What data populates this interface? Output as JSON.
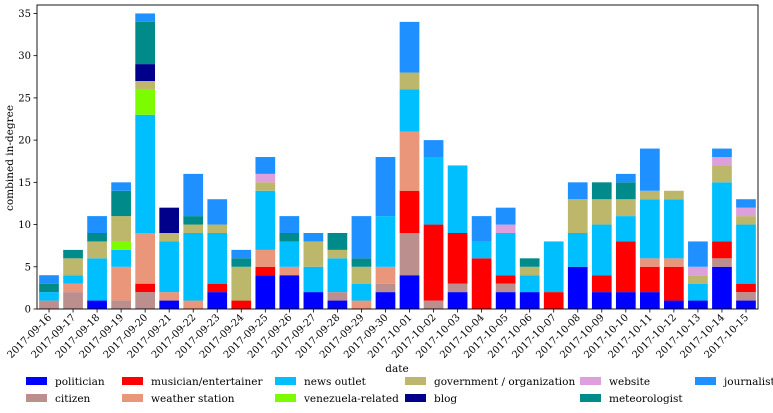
{
  "chart_data": {
    "type": "bar",
    "stacked": true,
    "xlabel": "date",
    "ylabel": "combined in-degree",
    "ylim": [
      0,
      36
    ],
    "yticks": [
      0,
      5,
      10,
      15,
      20,
      25,
      30,
      35
    ],
    "grid": false,
    "legend_position": "bottom",
    "categories": [
      "2017-09-16",
      "2017-09-17",
      "2017-09-18",
      "2017-09-19",
      "2017-09-20",
      "2017-09-21",
      "2017-09-22",
      "2017-09-23",
      "2017-09-24",
      "2017-09-25",
      "2017-09-26",
      "2017-09-27",
      "2017-09-28",
      "2017-09-29",
      "2017-09-30",
      "2017-10-01",
      "2017-10-02",
      "2017-10-03",
      "2017-10-04",
      "2017-10-05",
      "2017-10-06",
      "2017-10-07",
      "2017-10-08",
      "2017-10-09",
      "2017-10-10",
      "2017-10-11",
      "2017-10-12",
      "2017-10-13",
      "2017-10-14",
      "2017-10-15"
    ],
    "series": [
      {
        "name": "politician",
        "color": "#0000ff",
        "values": [
          0,
          0,
          1,
          0,
          0,
          1,
          0,
          2,
          0,
          4,
          4,
          2,
          1,
          0,
          2,
          4,
          0,
          2,
          0,
          2,
          2,
          0,
          5,
          2,
          2,
          2,
          1,
          1,
          5,
          1
        ]
      },
      {
        "name": "citizen",
        "color": "#bc8f8f",
        "values": [
          1,
          2,
          0,
          1,
          2,
          0,
          0,
          0,
          0,
          0,
          0,
          0,
          1,
          0,
          1,
          5,
          1,
          1,
          0,
          1,
          0,
          0,
          0,
          0,
          0,
          0,
          0,
          0,
          1,
          1
        ]
      },
      {
        "name": "musician/entertainer",
        "color": "#ff0000",
        "values": [
          0,
          0,
          0,
          0,
          1,
          0,
          0,
          1,
          1,
          1,
          0,
          0,
          0,
          0,
          0,
          5,
          9,
          6,
          6,
          1,
          0,
          2,
          0,
          2,
          6,
          3,
          4,
          0,
          2,
          1
        ]
      },
      {
        "name": "weather station",
        "color": "#e9967a",
        "values": [
          0,
          1,
          0,
          4,
          6,
          1,
          1,
          0,
          0,
          2,
          1,
          0,
          0,
          1,
          2,
          7,
          0,
          0,
          0,
          0,
          0,
          0,
          0,
          0,
          0,
          1,
          1,
          0,
          0,
          0
        ]
      },
      {
        "name": "news outlet",
        "color": "#00bfff",
        "values": [
          1,
          1,
          5,
          2,
          14,
          6,
          8,
          6,
          0,
          7,
          3,
          3,
          4,
          2,
          6,
          5,
          8,
          8,
          2,
          5,
          2,
          6,
          4,
          6,
          3,
          7,
          7,
          2,
          7,
          7
        ]
      },
      {
        "name": "venezuela-related",
        "color": "#7cfc00",
        "values": [
          0,
          0,
          0,
          1,
          3,
          0,
          0,
          0,
          0,
          0,
          0,
          0,
          0,
          0,
          0,
          0,
          0,
          0,
          0,
          0,
          0,
          0,
          0,
          0,
          0,
          0,
          0,
          0,
          0,
          0
        ]
      },
      {
        "name": "government / organization",
        "color": "#bdb76b",
        "values": [
          0,
          2,
          2,
          3,
          1,
          1,
          1,
          1,
          4,
          1,
          0,
          3,
          1,
          2,
          0,
          2,
          0,
          0,
          0,
          0,
          1,
          0,
          4,
          3,
          2,
          1,
          1,
          1,
          2,
          1
        ]
      },
      {
        "name": "blog",
        "color": "#00008b",
        "values": [
          0,
          0,
          0,
          0,
          2,
          3,
          0,
          0,
          0,
          0,
          0,
          0,
          0,
          0,
          0,
          0,
          0,
          0,
          0,
          0,
          0,
          0,
          0,
          0,
          0,
          0,
          0,
          0,
          0,
          0
        ]
      },
      {
        "name": "website",
        "color": "#dda0dd",
        "values": [
          0,
          0,
          0,
          0,
          0,
          0,
          0,
          0,
          0,
          1,
          0,
          0,
          0,
          0,
          0,
          0,
          0,
          0,
          0,
          1,
          0,
          0,
          0,
          0,
          0,
          0,
          0,
          1,
          1,
          1
        ]
      },
      {
        "name": "meteorologist",
        "color": "#008b8b",
        "values": [
          1,
          1,
          1,
          3,
          5,
          0,
          1,
          0,
          1,
          0,
          1,
          0,
          2,
          1,
          0,
          0,
          0,
          0,
          0,
          0,
          1,
          0,
          0,
          2,
          2,
          0,
          0,
          0,
          0,
          0
        ]
      },
      {
        "name": "journalist",
        "color": "#1e90ff",
        "values": [
          1,
          0,
          2,
          1,
          1,
          0,
          5,
          3,
          1,
          2,
          2,
          1,
          0,
          5,
          7,
          6,
          2,
          0,
          3,
          2,
          0,
          0,
          2,
          0,
          1,
          5,
          0,
          3,
          1,
          1
        ]
      }
    ]
  }
}
